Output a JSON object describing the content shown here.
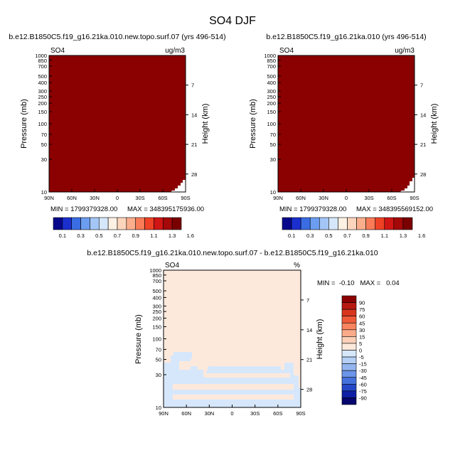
{
  "figure_title": "SO4 DJF",
  "chart_data": [
    {
      "type": "heatmap",
      "title": "b.e12.B1850C5.f19_g16.21ka.010.new.topo.surf.07 (yrs 496-514)",
      "left_label": "SO4",
      "right_label": "ug/m3",
      "xlabel": "",
      "ylabel": "Pressure (mb)",
      "ylabel_right": "Height (km)",
      "x_ticks": [
        "90N",
        "60N",
        "30N",
        "0",
        "30S",
        "60S",
        "90S"
      ],
      "y_ticks": [
        "10",
        "30",
        "50",
        "70",
        "100",
        "150",
        "200",
        "250",
        "300",
        "400",
        "500",
        "700",
        "850",
        "1000"
      ],
      "height_ticks": [
        "28",
        "21",
        "14",
        "7"
      ],
      "min_label": "MIN = 1799379328.00",
      "max_label": "MAX = 348395175936.00",
      "field_color": "#8b0000",
      "colorbar": {
        "orientation": "horizontal",
        "colors": [
          "#08088c",
          "#1b2fcf",
          "#3a6de3",
          "#6b9df0",
          "#a4c6f7",
          "#d6e7fb",
          "#fdf1e4",
          "#fdd5bc",
          "#fcae8c",
          "#f97b57",
          "#ef4125",
          "#d01515",
          "#a40808",
          "#7a0000"
        ],
        "labels": [
          "0.1",
          "0.3",
          "0.5",
          "0.7",
          "0.9",
          "1.1",
          "1.3",
          "1.6"
        ]
      }
    },
    {
      "type": "heatmap",
      "title": "b.e12.B1850C5.f19_g16.21ka.010 (yrs 496-514)",
      "left_label": "SO4",
      "right_label": "ug/m3",
      "xlabel": "",
      "ylabel": "Pressure (mb)",
      "ylabel_right": "Height (km)",
      "x_ticks": [
        "90N",
        "60N",
        "30N",
        "0",
        "30S",
        "60S",
        "90S"
      ],
      "y_ticks": [
        "10",
        "30",
        "50",
        "70",
        "100",
        "150",
        "200",
        "250",
        "300",
        "400",
        "500",
        "700",
        "850",
        "1000"
      ],
      "height_ticks": [
        "28",
        "21",
        "14",
        "7"
      ],
      "min_label": "MIN = 1799379328.00",
      "max_label": "MAX = 348395569152.00",
      "field_color": "#8b0000",
      "colorbar": {
        "orientation": "horizontal",
        "colors": [
          "#08088c",
          "#1b2fcf",
          "#3a6de3",
          "#6b9df0",
          "#a4c6f7",
          "#d6e7fb",
          "#fdf1e4",
          "#fdd5bc",
          "#fcae8c",
          "#f97b57",
          "#ef4125",
          "#d01515",
          "#a40808",
          "#7a0000"
        ],
        "labels": [
          "0.1",
          "0.3",
          "0.5",
          "0.7",
          "0.9",
          "1.1",
          "1.3",
          "1.6"
        ]
      }
    },
    {
      "type": "heatmap",
      "title": "b.e12.B1850C5.f19_g16.21ka.010.new.topo.surf.07 - b.e12.B1850C5.f19_g16.21ka.010",
      "left_label": "SO4",
      "right_label": "%",
      "xlabel": "",
      "ylabel": "Pressure (mb)",
      "ylabel_right": "Height (km)",
      "x_ticks": [
        "90N",
        "60N",
        "30N",
        "0",
        "30S",
        "60S",
        "90S"
      ],
      "y_ticks": [
        "10",
        "30",
        "50",
        "70",
        "100",
        "150",
        "200",
        "250",
        "300",
        "400",
        "500",
        "700",
        "850",
        "1000"
      ],
      "height_ticks": [
        "28",
        "21",
        "14",
        "7"
      ],
      "minmax_label": "MIN =  -0.10   MAX =   0.04",
      "field_color": "#fde9dc",
      "secondary_color": "#d6e7fb",
      "colorbar": {
        "orientation": "vertical",
        "colors": [
          "#8b0000",
          "#b81a12",
          "#d8351f",
          "#ef5a3a",
          "#f8845f",
          "#fbab89",
          "#fcd0b7",
          "#fde9dc",
          "#d6e7fb",
          "#b5cff5",
          "#93b5ef",
          "#6b95e8",
          "#4571dc",
          "#2448c8",
          "#0d1fa5",
          "#06066e"
        ],
        "labels": [
          "90",
          "75",
          "60",
          "45",
          "30",
          "15",
          "5",
          "0",
          "-5",
          "-15",
          "-30",
          "-45",
          "-60",
          "-75",
          "-90"
        ]
      }
    }
  ]
}
